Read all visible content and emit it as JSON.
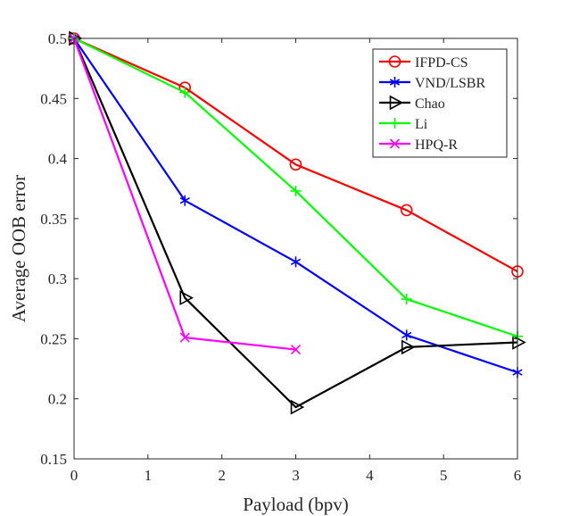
{
  "chart_data": {
    "type": "line",
    "title": "",
    "xlabel": "Payload (bpv)",
    "ylabel": "Average OOB error",
    "xlim": [
      0,
      6
    ],
    "ylim": [
      0.15,
      0.5
    ],
    "xticks": [
      0,
      1,
      2,
      3,
      4,
      5,
      6
    ],
    "xtick_labels": [
      "0",
      "1",
      "2",
      "3",
      "4",
      "5",
      "6"
    ],
    "yticks": [
      0.15,
      0.2,
      0.25,
      0.3,
      0.35,
      0.4,
      0.45,
      0.5
    ],
    "ytick_labels": [
      "0.15",
      "0.2",
      "0.25",
      "0.3",
      "0.35",
      "0.4",
      "0.45",
      "0.5"
    ],
    "grid": false,
    "legend_position": "top-right",
    "series": [
      {
        "name": "IFPD-CS",
        "color": "#ff0000",
        "marker": "circle",
        "x": [
          0,
          1.5,
          3,
          4.5,
          6
        ],
        "y": [
          0.5,
          0.459,
          0.395,
          0.357,
          0.306
        ]
      },
      {
        "name": "VND/LSBR",
        "color": "#0000ff",
        "marker": "asterisk",
        "x": [
          0,
          1.5,
          3,
          4.5,
          6
        ],
        "y": [
          0.5,
          0.365,
          0.314,
          0.253,
          0.222
        ]
      },
      {
        "name": "Chao",
        "color": "#000000",
        "marker": "triangle-right",
        "x": [
          0,
          1.5,
          3,
          4.5,
          6
        ],
        "y": [
          0.5,
          0.284,
          0.193,
          0.243,
          0.247
        ]
      },
      {
        "name": "Li",
        "color": "#00ff00",
        "marker": "plus",
        "x": [
          0,
          1.5,
          3,
          4.5,
          6
        ],
        "y": [
          0.5,
          0.455,
          0.373,
          0.283,
          0.252
        ]
      },
      {
        "name": "HPQ-R",
        "color": "#ff00ff",
        "marker": "cross",
        "x": [
          0,
          1.5,
          3
        ],
        "y": [
          0.5,
          0.251,
          0.241
        ]
      }
    ]
  }
}
